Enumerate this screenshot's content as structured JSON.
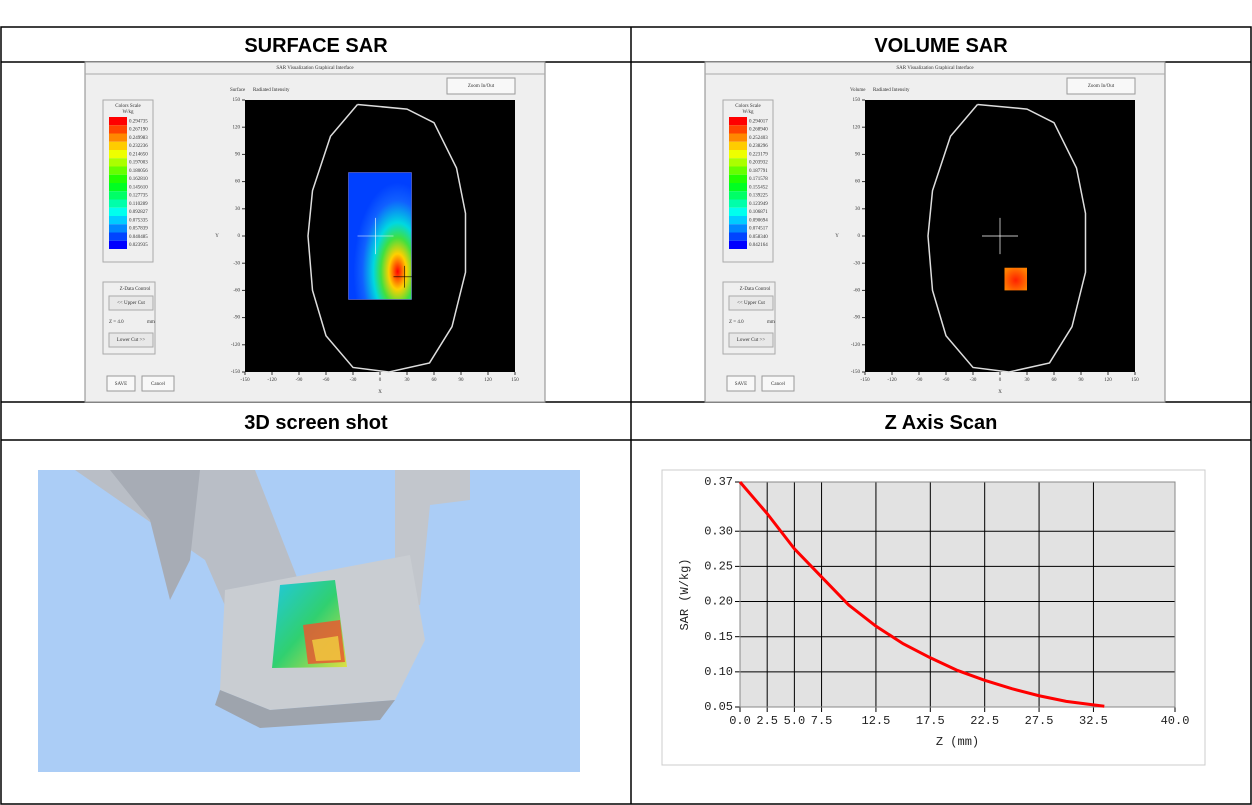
{
  "headers": [
    "SURFACE SAR",
    "VOLUME SAR",
    "3D screen shot"
  ],
  "screenshots": [
    {
      "window_title": "SAR Visualization Graphical Interface",
      "mode": "Surface",
      "mode_label": "Radiated Intensity",
      "zoom": "Zoom In/Out",
      "scale_title": "Colors Scale",
      "scale_unit": "W/kg",
      "scale_labels": [
        "0.294735",
        "0.267190",
        "0.249983",
        "0.232236",
        "0.214650",
        "0.197003",
        "0.180056",
        "0.162810",
        "0.145610",
        "0.127735",
        "0.110289",
        "0.092827",
        "0.075335",
        "0.057839",
        "0.040485",
        "0.023935"
      ],
      "control_title": "Z-Data Control",
      "upper_cut": "<< Upper Cut",
      "z_value": "Z = 4.0",
      "z_unit": "mm",
      "lower_cut": "Lower Cut >>",
      "save": "SAVE",
      "cancel": "Cancel",
      "ticks": [
        -150,
        -120,
        -90,
        -60,
        -30,
        0,
        30,
        60,
        90,
        120,
        150
      ],
      "x_label": "X",
      "y_label": "Y"
    },
    {
      "window_title": "SAR Visualization Graphical Interface",
      "mode": "Volume",
      "mode_label": "Radiated Intensity",
      "zoom": "Zoom In/Out",
      "scale_title": "Colors Scale",
      "scale_unit": "W/kg",
      "scale_labels": [
        "0.294017",
        "0.268940",
        "0.252403",
        "0.238296",
        "0.223179",
        "0.203932",
        "0.187791",
        "0.171578",
        "0.155452",
        "0.139225",
        "0.123949",
        "0.106871",
        "0.090694",
        "0.074517",
        "0.058340",
        "0.042164"
      ],
      "control_title": "Z-Data Control",
      "upper_cut": "<< Upper Cut",
      "z_value": "Z = 4.0",
      "z_unit": "mm",
      "lower_cut": "Lower Cut >>",
      "save": "SAVE",
      "cancel": "Cancel",
      "ticks": [
        -150,
        -120,
        -90,
        -60,
        -30,
        0,
        30,
        60,
        90,
        120,
        150
      ],
      "x_label": "X",
      "y_label": "Y"
    }
  ],
  "chart_data": {
    "type": "line",
    "title": "Z Axis Scan",
    "x_label": "Z (mm)",
    "y_label": "SAR (W/kg)",
    "x": [
      0,
      2.5,
      5,
      7.5,
      10,
      12.5,
      15,
      17.5,
      20,
      22.5,
      25,
      27.5,
      30,
      32.5,
      33.5
    ],
    "values": [
      0.37,
      0.325,
      0.275,
      0.235,
      0.195,
      0.165,
      0.14,
      0.12,
      0.102,
      0.088,
      0.076,
      0.066,
      0.058,
      0.053,
      0.051
    ],
    "color": "#ff0000",
    "xlim": [
      0,
      40
    ],
    "ylim": [
      0.05,
      0.37
    ],
    "xticks": [
      {
        "value": 0,
        "label": "0.0"
      },
      2.5,
      {
        "value": 5,
        "label": "5.0"
      },
      7.5,
      12.5,
      17.5,
      22.5,
      27.5,
      32.5,
      {
        "value": 40,
        "label": "40.0"
      }
    ],
    "yticks": [
      0.05,
      {
        "value": 0.1,
        "label": "0.10"
      },
      0.15,
      {
        "value": 0.2,
        "label": "0.20"
      },
      0.25,
      {
        "value": 0.3,
        "label": "0.30"
      },
      0.37
    ],
    "grid": true
  }
}
